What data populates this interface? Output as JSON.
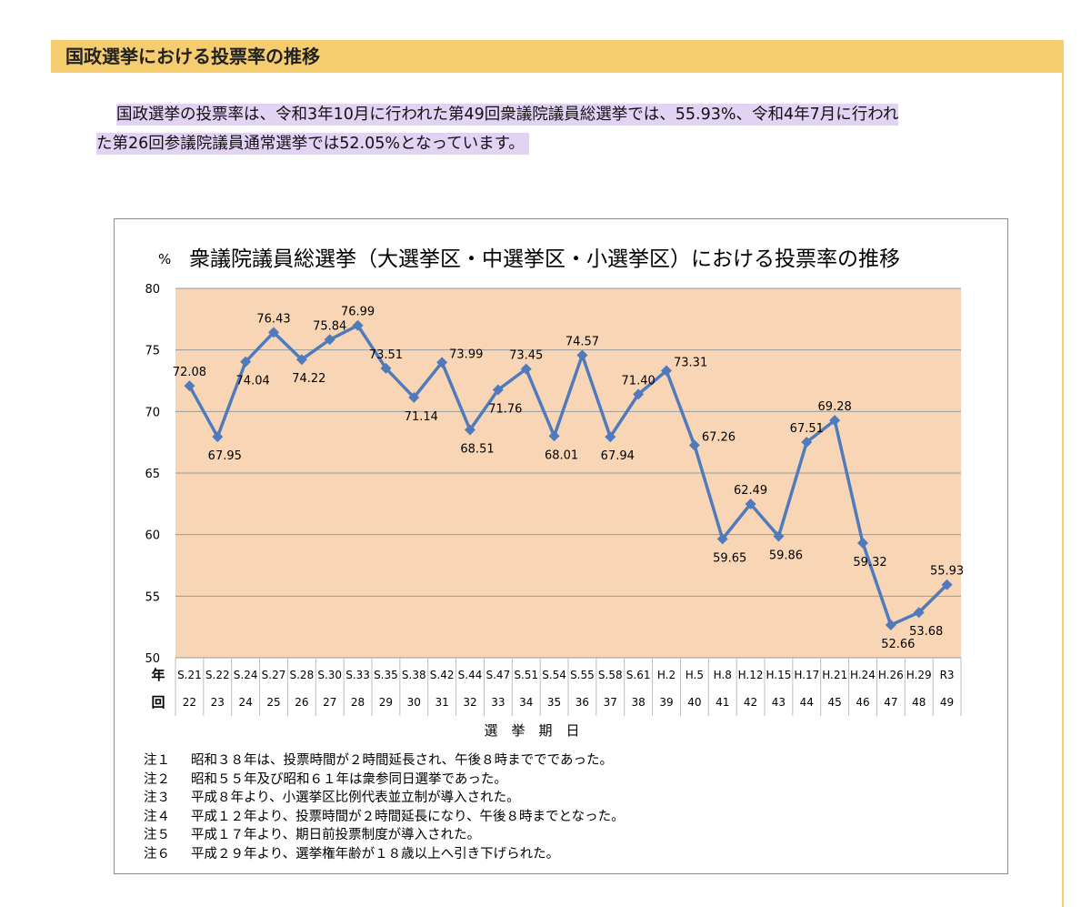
{
  "section": {
    "title": "国政選挙における投票率の推移"
  },
  "intro": {
    "line1": "国政選挙の投票率は、令和3年10月に行われた第49回衆議院議員総選挙では、55.93%、令和4年7月に行われ",
    "line2": "た第26回参議院議員通常選挙では52.05%となっています。"
  },
  "colors": {
    "header_bg": "#f6cd6e",
    "highlight": "#e2d2f4",
    "plot_bg": "#f8d6b5",
    "line": "#4f7bbd",
    "grid": "#9a9a9a"
  },
  "chart_data": {
    "type": "line",
    "title": "衆議院議員総選挙（大選挙区・中選挙区・小選挙区）における投票率の推移",
    "ylabel": "%",
    "xlabel": "選　挙　期　日",
    "row_label_year": "年",
    "row_label_round": "回",
    "ylim": [
      50,
      80
    ],
    "yticks": [
      50,
      55,
      60,
      65,
      70,
      75,
      80
    ],
    "categories": [
      "S.21",
      "S.22",
      "S.24",
      "S.27",
      "S.28",
      "S.30",
      "S.33",
      "S.35",
      "S.38",
      "S.42",
      "S.44",
      "S.47",
      "S.51",
      "S.54",
      "S.55",
      "S.58",
      "S.61",
      "H.2",
      "H.5",
      "H.8",
      "H.12",
      "H.15",
      "H.17",
      "H.21",
      "H.24",
      "H.26",
      "H.29",
      "R3"
    ],
    "rounds": [
      "22",
      "23",
      "24",
      "25",
      "26",
      "27",
      "28",
      "29",
      "30",
      "31",
      "32",
      "33",
      "34",
      "35",
      "36",
      "37",
      "38",
      "39",
      "40",
      "41",
      "42",
      "43",
      "44",
      "45",
      "46",
      "47",
      "48",
      "49"
    ],
    "series": [
      {
        "name": "投票率",
        "values": [
          72.08,
          67.95,
          74.04,
          76.43,
          74.22,
          75.84,
          76.99,
          73.51,
          71.14,
          73.99,
          68.51,
          71.76,
          73.45,
          68.01,
          74.57,
          67.94,
          71.4,
          73.31,
          67.26,
          59.65,
          62.49,
          59.86,
          67.51,
          69.28,
          59.32,
          52.66,
          53.68,
          55.93
        ],
        "labels": [
          "72.08",
          "67.95",
          "74.04",
          "76.43",
          "74.22",
          "75.84",
          "76.99",
          "73.51",
          "71.14",
          "73.99",
          "68.51",
          "71.76",
          "73.45",
          "68.01",
          "74.57",
          "67.94",
          "71.40",
          "73.31",
          "67.26",
          "59.65",
          "62.49",
          "59.86",
          "67.51",
          "69.28",
          "59.32",
          "52.66",
          "53.68",
          "55.93"
        ]
      }
    ],
    "label_positions": [
      "above",
      "below",
      "below",
      "above",
      "below",
      "above",
      "above",
      "above",
      "below",
      "right",
      "below",
      "below",
      "above",
      "below",
      "above",
      "below",
      "above",
      "right",
      "right",
      "below",
      "above",
      "below",
      "above",
      "above",
      "below",
      "below",
      "below",
      "above"
    ]
  },
  "notes": [
    {
      "key": "注１",
      "text": "昭和３８年は、投票時間が２時間延長され、午後８時まででであった。"
    },
    {
      "key": "注２",
      "text": "昭和５５年及び昭和６１年は衆参同日選挙であった。"
    },
    {
      "key": "注３",
      "text": "平成８年より、小選挙区比例代表並立制が導入された。"
    },
    {
      "key": "注４",
      "text": "平成１２年より、投票時間が２時間延長になり、午後８時までとなった。"
    },
    {
      "key": "注５",
      "text": "平成１７年より、期日前投票制度が導入された。"
    },
    {
      "key": "注６",
      "text": "平成２９年より、選挙権年齢が１８歳以上へ引き下げられた。"
    }
  ]
}
